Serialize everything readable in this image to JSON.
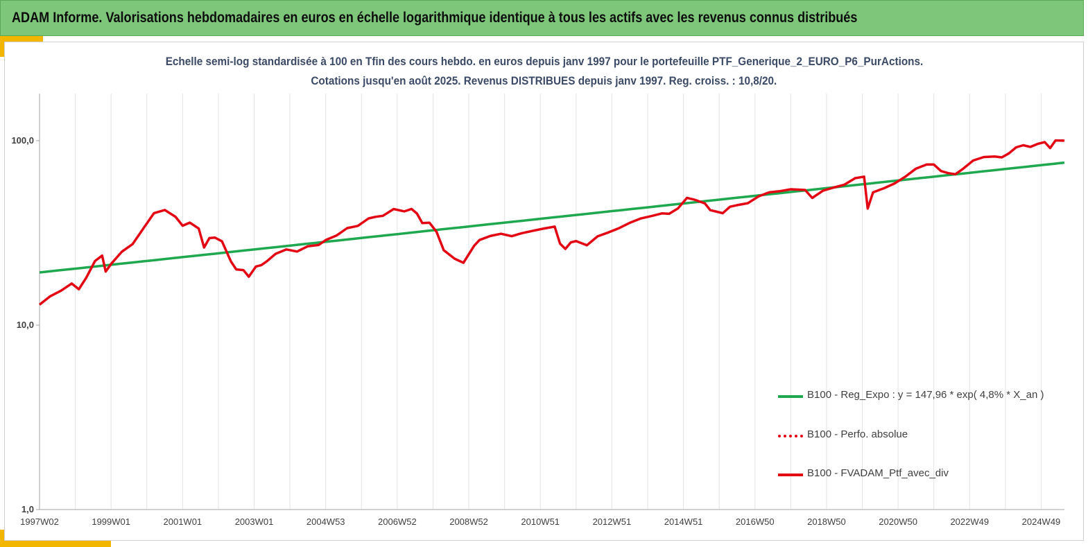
{
  "header": {
    "title": "ADAM Informe. Valorisations hebdomadaires en euros en échelle logarithmique identique à tous les actifs avec les revenus connus distribués"
  },
  "colors": {
    "banner": "#7dc67a",
    "accent": "#f2b600",
    "subtitle": "#3b4a66",
    "regression": "#1fa84f",
    "series": "#e30613"
  },
  "chart_data": {
    "type": "line",
    "subtitle_line1": "Echelle semi-log standardisée à 100 en Tfin des cours hebdo.  en euros depuis janv 1997 pour le portefeuille PTF_Generique_2_EURO_P6_PurActions.",
    "subtitle_line2": "Cotations jusqu'en août 2025. Revenus DISTRIBUES depuis janv 1997. Reg. croiss. : 10,8/20.",
    "y_scale": "log",
    "ylim": [
      1,
      180
    ],
    "xlim": [
      1997.0,
      2025.65
    ],
    "y_ticks": [
      {
        "value": 1,
        "label": "1,0"
      },
      {
        "value": 10,
        "label": "10,0"
      },
      {
        "value": 100,
        "label": "100,0"
      }
    ],
    "x_ticks": [
      {
        "value": 1997.0,
        "label": "1997W02"
      },
      {
        "value": 1999.0,
        "label": "1999W01"
      },
      {
        "value": 2001.0,
        "label": "2001W01"
      },
      {
        "value": 2003.0,
        "label": "2003W01"
      },
      {
        "value": 2005.0,
        "label": "2004W53"
      },
      {
        "value": 2007.0,
        "label": "2006W52"
      },
      {
        "value": 2009.0,
        "label": "2008W52"
      },
      {
        "value": 2011.0,
        "label": "2010W51"
      },
      {
        "value": 2013.0,
        "label": "2012W51"
      },
      {
        "value": 2015.0,
        "label": "2014W51"
      },
      {
        "value": 2017.0,
        "label": "2016W50"
      },
      {
        "value": 2019.0,
        "label": "2018W50"
      },
      {
        "value": 2021.0,
        "label": "2020W50"
      },
      {
        "value": 2023.0,
        "label": "2022W49"
      },
      {
        "value": 2025.0,
        "label": "2024W49"
      }
    ],
    "grid": {
      "vertical": true,
      "horizontal": false
    },
    "legend_position": "bottom-right",
    "series": [
      {
        "name": "B100 - Reg_Expo : y = 147,96 * exp( 4,8% *  X_an )",
        "style": "solid",
        "color": "#1fa84f",
        "x": [
          1997.0,
          2025.65
        ],
        "y": [
          19.3,
          76
        ]
      },
      {
        "name": "B100 - Perfo. absolue",
        "style": "dotted",
        "color": "#e30613",
        "x": [],
        "y": []
      },
      {
        "name": "B100 - FVADAM_Ptf_avec_div",
        "style": "solid",
        "color": "#e30613",
        "x": [
          1997.0,
          1997.3,
          1997.6,
          1997.9,
          1998.1,
          1998.3,
          1998.55,
          1998.75,
          1998.85,
          1999.0,
          1999.3,
          1999.6,
          1999.9,
          2000.2,
          2000.5,
          2000.8,
          2001.0,
          2001.2,
          2001.45,
          2001.6,
          2001.75,
          2001.9,
          2002.1,
          2002.35,
          2002.5,
          2002.7,
          2002.85,
          2003.05,
          2003.2,
          2003.35,
          2003.6,
          2003.9,
          2004.2,
          2004.5,
          2004.8,
          2005.0,
          2005.3,
          2005.6,
          2005.9,
          2006.2,
          2006.4,
          2006.6,
          2006.9,
          2007.2,
          2007.4,
          2007.55,
          2007.7,
          2007.9,
          2008.1,
          2008.3,
          2008.6,
          2008.85,
          2009.15,
          2009.3,
          2009.6,
          2009.9,
          2010.2,
          2010.4,
          2010.5,
          2010.8,
          2011.1,
          2011.4,
          2011.55,
          2011.7,
          2011.85,
          2012.0,
          2012.3,
          2012.6,
          2012.9,
          2013.2,
          2013.5,
          2013.8,
          2014.1,
          2014.4,
          2014.6,
          2014.85,
          2015.1,
          2015.3,
          2015.6,
          2015.75,
          2016.1,
          2016.3,
          2016.5,
          2016.8,
          2017.1,
          2017.4,
          2017.7,
          2018.0,
          2018.4,
          2018.6,
          2018.9,
          2019.2,
          2019.5,
          2019.8,
          2020.05,
          2020.15,
          2020.3,
          2020.6,
          2020.9,
          2021.2,
          2021.5,
          2021.8,
          2022.0,
          2022.2,
          2022.4,
          2022.6,
          2022.8,
          2023.1,
          2023.4,
          2023.7,
          2023.9,
          2024.1,
          2024.3,
          2024.5,
          2024.7,
          2024.9,
          2025.1,
          2025.25,
          2025.4,
          2025.65
        ],
        "y": [
          12.9,
          14.2,
          15.2,
          16.8,
          15.8,
          18.2,
          22.3,
          23.6,
          19.3,
          21.4,
          25.2,
          27.8,
          33.5,
          40.2,
          41.6,
          38.5,
          34.8,
          36.4,
          33.6,
          26.2,
          29.3,
          29.6,
          28.6,
          22.4,
          20.2,
          19.8,
          18.1,
          20.6,
          21.2,
          22.4,
          24.6,
          25.7,
          24.8,
          26.5,
          27.2,
          29.2,
          30.9,
          33.6,
          34.2,
          37.5,
          38.6,
          39.5,
          43.1,
          41.5,
          42.3,
          39.8,
          35.6,
          36.2,
          32.4,
          25.6,
          22.8,
          21.5,
          26.8,
          29.1,
          30.8,
          31.5,
          30.2,
          30.8,
          31.3,
          32.6,
          33.8,
          34.5,
          27.6,
          25.6,
          27.8,
          28.6,
          27.4,
          30.6,
          31.8,
          33.2,
          35.5,
          37.8,
          39.4,
          40.8,
          40.2,
          42.6,
          48.4,
          47.8,
          46.1,
          42.5,
          40.6,
          43.5,
          44.2,
          45.6,
          50.2,
          53.1,
          53.6,
          54.2,
          53.4,
          48.6,
          53.8,
          56.4,
          58.2,
          62.4,
          63.1,
          42.5,
          52.6,
          55.8,
          59.2,
          63.6,
          69.8,
          73.5,
          74.3,
          69.2,
          67.4,
          65.8,
          69.3,
          77.2,
          81.4,
          82.8,
          82.1,
          85.6,
          91.3,
          93.4,
          92.2,
          96.8,
          99.4,
          91.6,
          99.6,
          100.0
        ]
      }
    ]
  }
}
